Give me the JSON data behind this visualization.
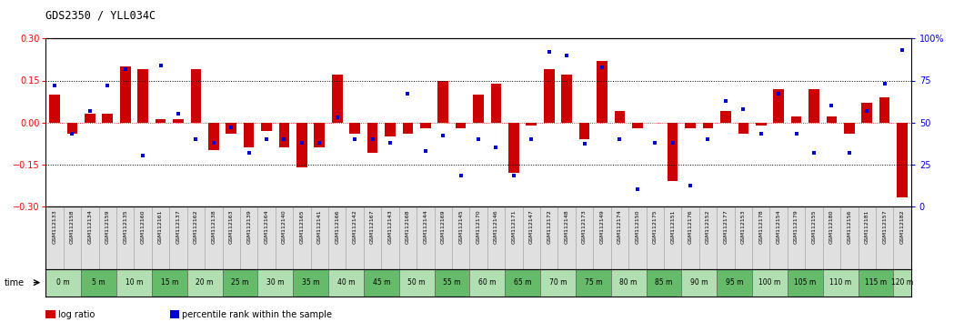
{
  "title": "GDS2350 / YLL034C",
  "samples": [
    "GSM112133",
    "GSM112158",
    "GSM112134",
    "GSM112159",
    "GSM112135",
    "GSM112160",
    "GSM112161",
    "GSM112137",
    "GSM112162",
    "GSM112138",
    "GSM112163",
    "GSM112139",
    "GSM112164",
    "GSM112140",
    "GSM112165",
    "GSM112141",
    "GSM112166",
    "GSM112142",
    "GSM112167",
    "GSM112143",
    "GSM112168",
    "GSM112144",
    "GSM112169",
    "GSM112145",
    "GSM112170",
    "GSM112146",
    "GSM112171",
    "GSM112147",
    "GSM112172",
    "GSM112148",
    "GSM112173",
    "GSM112149",
    "GSM112174",
    "GSM112150",
    "GSM112175",
    "GSM112151",
    "GSM112176",
    "GSM112152",
    "GSM112177",
    "GSM112153",
    "GSM112178",
    "GSM112154",
    "GSM112179",
    "GSM112155",
    "GSM112180",
    "GSM112156",
    "GSM112181",
    "GSM112157",
    "GSM112182"
  ],
  "time_labels": [
    "0 m",
    "5 m",
    "10 m",
    "15 m",
    "20 m",
    "25 m",
    "30 m",
    "35 m",
    "40 m",
    "45 m",
    "50 m",
    "55 m",
    "60 m",
    "65 m",
    "70 m",
    "75 m",
    "80 m",
    "85 m",
    "90 m",
    "95 m",
    "100 m",
    "105 m",
    "110 m",
    "115 m",
    "120 m"
  ],
  "log_ratio": [
    0.1,
    -0.04,
    0.03,
    0.03,
    0.2,
    0.19,
    0.01,
    0.01,
    0.19,
    -0.1,
    -0.04,
    -0.09,
    -0.03,
    -0.09,
    -0.16,
    -0.09,
    0.17,
    -0.04,
    -0.11,
    -0.05,
    -0.04,
    -0.02,
    0.15,
    -0.02,
    0.1,
    0.14,
    -0.18,
    -0.01,
    0.19,
    0.17,
    -0.06,
    0.22,
    0.04,
    -0.02,
    0.0,
    -0.21,
    -0.02,
    -0.02,
    0.04,
    -0.04,
    -0.01,
    0.12,
    0.02,
    0.12,
    0.02,
    -0.04,
    0.07,
    0.09,
    -0.27
  ],
  "percentile": [
    72,
    43,
    57,
    72,
    82,
    30,
    84,
    55,
    40,
    38,
    47,
    32,
    40,
    40,
    38,
    38,
    53,
    40,
    40,
    38,
    67,
    33,
    42,
    18,
    40,
    35,
    18,
    40,
    92,
    90,
    37,
    83,
    40,
    10,
    38,
    38,
    12,
    40,
    63,
    58,
    43,
    67,
    43,
    32,
    60,
    32,
    57,
    73,
    93
  ],
  "bar_color": "#cc0000",
  "dot_color": "#0000cc",
  "ref_line_color": "#cc0000",
  "dotted_line_color": "#000000",
  "bg_color": "#ffffff",
  "label_bg": "#d4d4d4",
  "ylim_left": [
    -0.3,
    0.3
  ],
  "ylim_right": [
    0,
    100
  ],
  "yticks_left": [
    -0.3,
    -0.15,
    0.0,
    0.15,
    0.3
  ],
  "yticks_right": [
    0,
    25,
    50,
    75,
    100
  ],
  "hline_vals": [
    0.15,
    -0.15
  ],
  "legend_log_label": "log ratio",
  "legend_pct_label": "percentile rank within the sample"
}
